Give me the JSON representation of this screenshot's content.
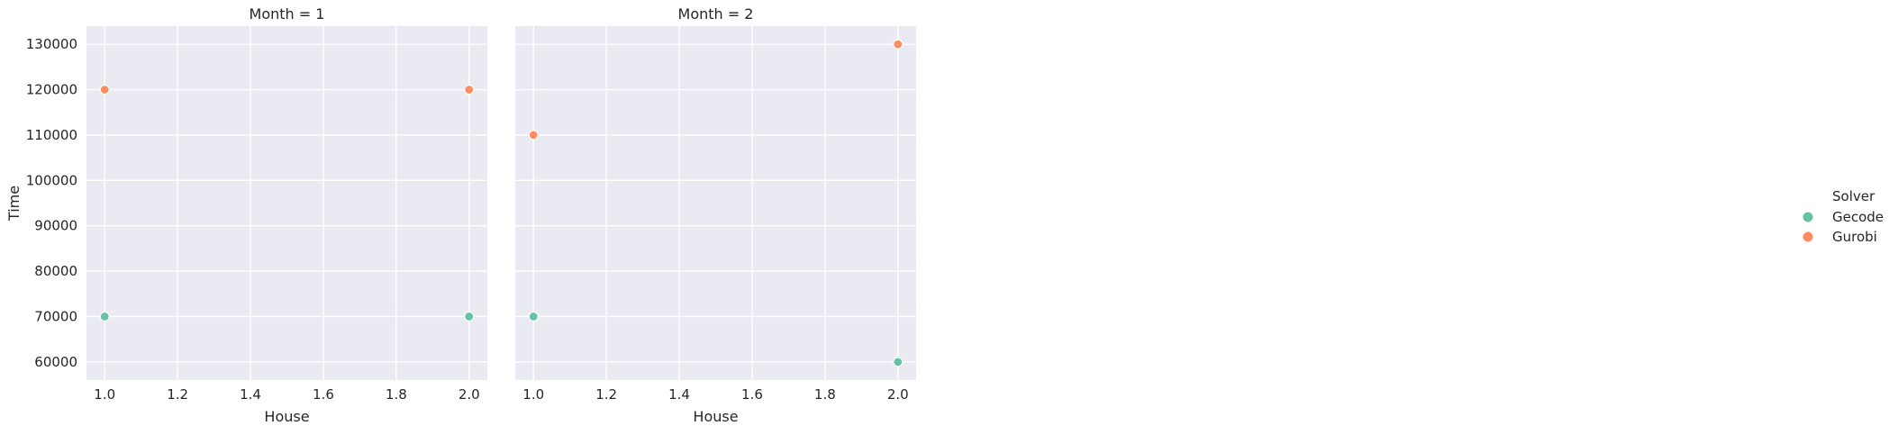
{
  "chart_data": {
    "type": "scatter",
    "xlabel": "House",
    "ylabel": "Time",
    "xlim": [
      0.95,
      2.05
    ],
    "ylim": [
      56000,
      134000
    ],
    "x_ticks": [
      1.0,
      1.2,
      1.4,
      1.6,
      1.8,
      2.0
    ],
    "x_tick_labels": [
      "1.0",
      "1.2",
      "1.4",
      "1.6",
      "1.8",
      "2.0"
    ],
    "y_ticks": [
      60000,
      70000,
      80000,
      90000,
      100000,
      110000,
      120000,
      130000
    ],
    "y_tick_labels": [
      "60000",
      "70000",
      "80000",
      "90000",
      "100000",
      "110000",
      "120000",
      "130000"
    ],
    "grid": true,
    "legend": {
      "title": "Solver",
      "placement": "right",
      "entries": [
        {
          "name": "Gecode",
          "color": "#66c2a5"
        },
        {
          "name": "Gurobi",
          "color": "#fc8d62"
        }
      ]
    },
    "panels": [
      {
        "title": "Month = 1",
        "series": [
          {
            "name": "Gecode",
            "points": [
              [
                1.0,
                70000
              ],
              [
                2.0,
                70000
              ]
            ]
          },
          {
            "name": "Gurobi",
            "points": [
              [
                1.0,
                120000
              ],
              [
                2.0,
                120000
              ]
            ]
          }
        ]
      },
      {
        "title": "Month = 2",
        "series": [
          {
            "name": "Gecode",
            "points": [
              [
                1.0,
                70000
              ],
              [
                2.0,
                60000
              ]
            ]
          },
          {
            "name": "Gurobi",
            "points": [
              [
                1.0,
                110000
              ],
              [
                2.0,
                130000
              ]
            ]
          }
        ]
      }
    ]
  }
}
